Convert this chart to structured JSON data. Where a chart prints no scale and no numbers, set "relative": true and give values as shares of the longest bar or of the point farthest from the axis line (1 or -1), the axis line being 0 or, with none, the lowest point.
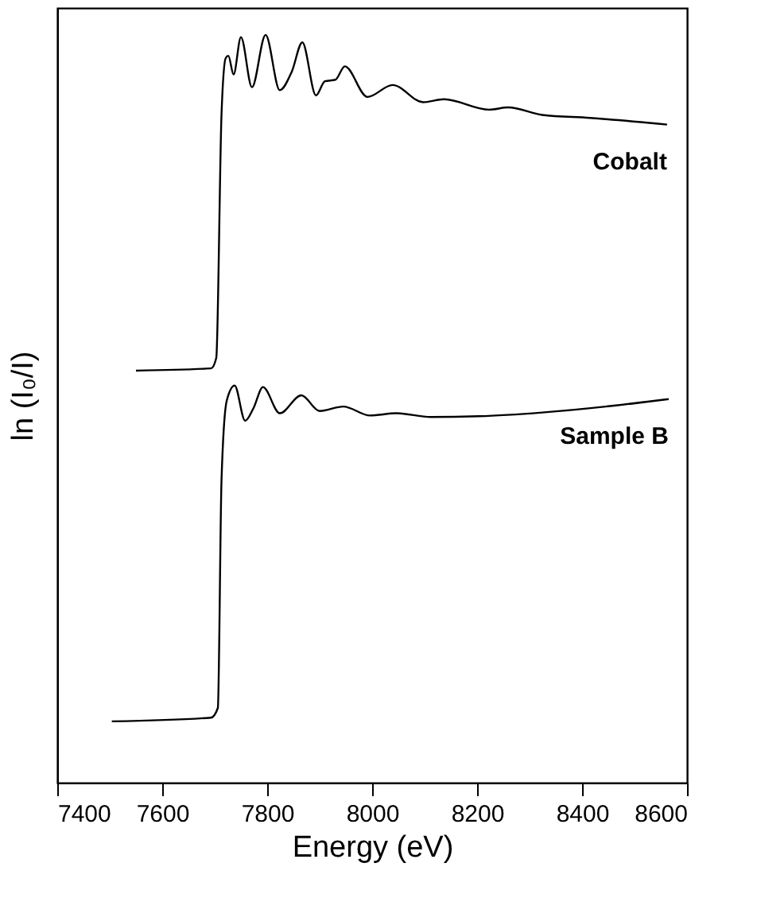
{
  "chart_data": {
    "type": "line",
    "xlabel": "Energy (eV)",
    "ylabel": "ln (I₀/I)",
    "relative": true,
    "grid": false,
    "xlim": [
      7400,
      8600
    ],
    "xticks": [
      7400,
      7600,
      7800,
      8000,
      8200,
      8400,
      8600
    ],
    "series": [
      {
        "name": "Cobalt",
        "color": "#000000",
        "x": [
          7550,
          7693,
          7703,
          7713,
          7721,
          7726,
          7736,
          7750,
          7771,
          7797,
          7824,
          7847,
          7867,
          7893,
          7910,
          7930,
          7948,
          7991,
          8039,
          8097,
          8137,
          8223,
          8259,
          8324,
          8415,
          8562
        ],
        "values": [
          0.551,
          0.554,
          0.568,
          0.894,
          0.969,
          0.972,
          0.947,
          0.997,
          0.93,
          1.0,
          0.926,
          0.951,
          0.99,
          0.919,
          0.938,
          0.94,
          0.958,
          0.917,
          0.933,
          0.91,
          0.914,
          0.9,
          0.903,
          0.893,
          0.889,
          0.88
        ]
      },
      {
        "name": "Sample B",
        "color": "#000000",
        "x": [
          7504,
          7693,
          7706,
          7713,
          7723,
          7738,
          7758,
          7774,
          7792,
          7824,
          7865,
          7900,
          7945,
          7996,
          8046,
          8112,
          8203,
          8324,
          8445,
          8565
        ],
        "values": [
          0.082,
          0.087,
          0.1,
          0.405,
          0.511,
          0.531,
          0.484,
          0.501,
          0.529,
          0.494,
          0.518,
          0.497,
          0.503,
          0.491,
          0.494,
          0.489,
          0.49,
          0.495,
          0.503,
          0.513
        ]
      }
    ]
  }
}
